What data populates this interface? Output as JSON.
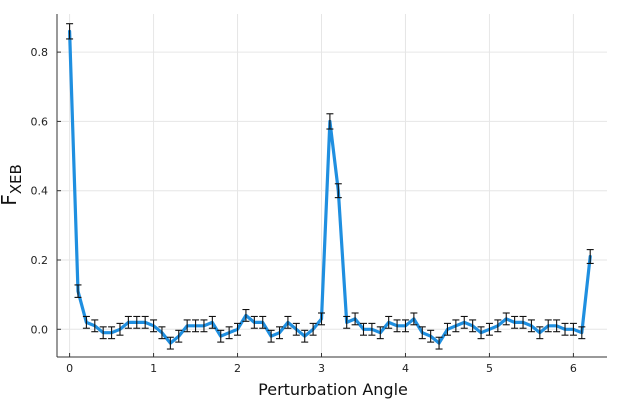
{
  "chart_data": {
    "type": "line",
    "title": "",
    "xlabel": "Perturbation Angle",
    "ylabel_main": "F",
    "ylabel_sub": "XEB",
    "xlim": [
      -0.15,
      6.4
    ],
    "ylim": [
      -0.08,
      0.91
    ],
    "xticks": [
      0,
      1,
      2,
      3,
      4,
      5,
      6
    ],
    "yticks": [
      0.0,
      0.2,
      0.4,
      0.6,
      0.8
    ],
    "xtick_labels": [
      "0",
      "1",
      "2",
      "3",
      "4",
      "5",
      "6"
    ],
    "ytick_labels": [
      "0.0",
      "0.2",
      "0.4",
      "0.6",
      "0.8"
    ],
    "grid": true,
    "legend": "none",
    "line_color": "#1f8fe0",
    "errorbar_color": "#111111",
    "series": [
      {
        "x": [
          0.0,
          0.1,
          0.2,
          0.3,
          0.4,
          0.5,
          0.6,
          0.7,
          0.8,
          0.9,
          1.0,
          1.1,
          1.2,
          1.3,
          1.4,
          1.5,
          1.6,
          1.7,
          1.8,
          1.9,
          2.0,
          2.1,
          2.2,
          2.3,
          2.4,
          2.5,
          2.6,
          2.7,
          2.8,
          2.9,
          3.0,
          3.1,
          3.2,
          3.3,
          3.4,
          3.5,
          3.6,
          3.7,
          3.8,
          3.9,
          4.0,
          4.1,
          4.2,
          4.3,
          4.4,
          4.5,
          4.6,
          4.7,
          4.8,
          4.9,
          5.0,
          5.1,
          5.2,
          5.3,
          5.4,
          5.5,
          5.6,
          5.7,
          5.8,
          5.9,
          6.0,
          6.1,
          6.2
        ],
        "y": [
          0.86,
          0.11,
          0.02,
          0.01,
          -0.01,
          -0.01,
          0.0,
          0.02,
          0.02,
          0.02,
          0.01,
          -0.01,
          -0.04,
          -0.02,
          0.01,
          0.01,
          0.01,
          0.02,
          -0.02,
          -0.01,
          0.0,
          0.04,
          0.02,
          0.02,
          -0.02,
          -0.01,
          0.02,
          0.0,
          -0.02,
          0.0,
          0.03,
          0.6,
          0.4,
          0.02,
          0.03,
          0.0,
          0.0,
          -0.01,
          0.02,
          0.01,
          0.01,
          0.03,
          -0.01,
          -0.02,
          -0.04,
          0.0,
          0.01,
          0.02,
          0.01,
          -0.01,
          0.0,
          0.01,
          0.03,
          0.02,
          0.02,
          0.01,
          -0.01,
          0.01,
          0.01,
          0.0,
          0.0,
          -0.01,
          0.21
        ],
        "err": [
          0.022,
          0.018,
          0.017,
          0.017,
          0.017,
          0.017,
          0.017,
          0.017,
          0.017,
          0.017,
          0.017,
          0.017,
          0.017,
          0.017,
          0.017,
          0.017,
          0.017,
          0.017,
          0.017,
          0.017,
          0.017,
          0.017,
          0.017,
          0.017,
          0.017,
          0.017,
          0.017,
          0.017,
          0.017,
          0.017,
          0.017,
          0.022,
          0.02,
          0.017,
          0.017,
          0.017,
          0.017,
          0.017,
          0.017,
          0.017,
          0.017,
          0.017,
          0.017,
          0.017,
          0.017,
          0.017,
          0.017,
          0.017,
          0.017,
          0.017,
          0.017,
          0.017,
          0.017,
          0.017,
          0.017,
          0.017,
          0.017,
          0.017,
          0.017,
          0.017,
          0.017,
          0.017,
          0.02
        ]
      }
    ]
  }
}
